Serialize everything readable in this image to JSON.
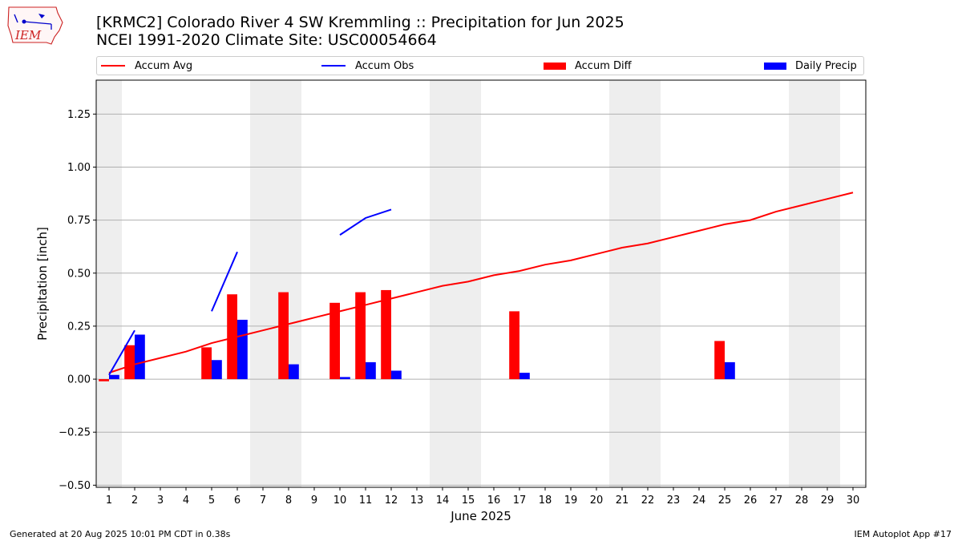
{
  "header": {
    "title_line1": "[KRMC2] Colorado River 4 SW Kremmling :: Precipitation for Jun 2025",
    "title_line2": "NCEI 1991-2020 Climate Site: USC00054664",
    "logo_text": "IEM"
  },
  "legend": {
    "items": [
      {
        "label": "Accum Avg",
        "kind": "line",
        "color": "#ff0000"
      },
      {
        "label": "Accum Obs",
        "kind": "line",
        "color": "#0000ff"
      },
      {
        "label": "Accum Diff",
        "kind": "bar",
        "color": "#ff0000"
      },
      {
        "label": "Daily Precip",
        "kind": "bar",
        "color": "#0000ff"
      }
    ]
  },
  "footer": {
    "generated": "Generated at 20 Aug 2025 10:01 PM CDT in 0.38s",
    "app": "IEM Autoplot App #17"
  },
  "chart_data": {
    "type": "bar",
    "xlabel": "June 2025",
    "ylabel": "Precipitation [inch]",
    "xlim": [
      0.5,
      30.5
    ],
    "ylim": [
      -0.51,
      1.41
    ],
    "grid": "horizontal",
    "legend_position": "top",
    "days": [
      1,
      2,
      3,
      4,
      5,
      6,
      7,
      8,
      9,
      10,
      11,
      12,
      13,
      14,
      15,
      16,
      17,
      18,
      19,
      20,
      21,
      22,
      23,
      24,
      25,
      26,
      27,
      28,
      29,
      30
    ],
    "x_tick_labels": [
      "1",
      "2",
      "3",
      "4",
      "5",
      "6",
      "7",
      "8",
      "9",
      "10",
      "11",
      "12",
      "13",
      "14",
      "15",
      "16",
      "17",
      "18",
      "19",
      "20",
      "21",
      "22",
      "23",
      "24",
      "25",
      "26",
      "27",
      "28",
      "29",
      "30"
    ],
    "y_ticks": [
      -0.5,
      -0.25,
      0.0,
      0.25,
      0.5,
      0.75,
      1.0,
      1.25
    ],
    "y_tick_labels": [
      "−0.50",
      "−0.25",
      "0.00",
      "0.25",
      "0.50",
      "0.75",
      "1.00",
      "1.25"
    ],
    "weekend_shading": [
      [
        0.5,
        1.5
      ],
      [
        6.5,
        8.5
      ],
      [
        13.5,
        15.5
      ],
      [
        20.5,
        22.5
      ],
      [
        27.5,
        29.5
      ]
    ],
    "shade_color": "#eeeeee",
    "series": [
      {
        "name": "Accum Avg",
        "kind": "line",
        "color": "#ff0000",
        "x": [
          1,
          2,
          3,
          4,
          5,
          6,
          7,
          8,
          9,
          10,
          11,
          12,
          13,
          14,
          15,
          16,
          17,
          18,
          19,
          20,
          21,
          22,
          23,
          24,
          25,
          26,
          27,
          28,
          29,
          30
        ],
        "values": [
          0.03,
          0.07,
          0.1,
          0.13,
          0.17,
          0.2,
          0.23,
          0.26,
          0.29,
          0.32,
          0.35,
          0.38,
          0.41,
          0.44,
          0.46,
          0.49,
          0.51,
          0.54,
          0.56,
          0.59,
          0.62,
          0.64,
          0.67,
          0.7,
          0.73,
          0.75,
          0.79,
          0.82,
          0.85,
          0.88
        ]
      },
      {
        "name": "Accum Obs",
        "kind": "line",
        "color": "#0000ff",
        "segments": [
          {
            "x": [
              1,
              2
            ],
            "values": [
              0.02,
              0.23
            ]
          },
          {
            "x": [
              5,
              6
            ],
            "values": [
              0.32,
              0.6
            ]
          },
          {
            "x": [
              10,
              11,
              12
            ],
            "values": [
              0.68,
              0.76,
              0.8
            ]
          }
        ]
      },
      {
        "name": "Accum Diff",
        "kind": "bar",
        "color": "#ff0000",
        "x": [
          1,
          2,
          5,
          6,
          8,
          10,
          11,
          12,
          17,
          25
        ],
        "values": [
          -0.01,
          0.16,
          0.15,
          0.4,
          0.41,
          0.36,
          0.41,
          0.42,
          0.32,
          0.18
        ]
      },
      {
        "name": "Daily Precip",
        "kind": "bar",
        "color": "#0000ff",
        "x": [
          1,
          2,
          5,
          6,
          8,
          10,
          11,
          12,
          17,
          25
        ],
        "values": [
          0.02,
          0.21,
          0.09,
          0.28,
          0.07,
          0.01,
          0.08,
          0.04,
          0.03,
          0.08
        ]
      }
    ]
  }
}
